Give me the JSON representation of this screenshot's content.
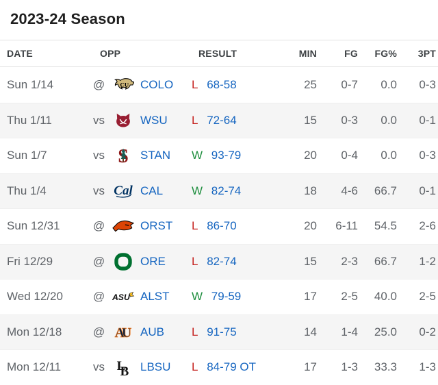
{
  "title": "2023-24 Season",
  "colors": {
    "link_blue": "#1565c0",
    "loss_red": "#c5221f",
    "win_green": "#1e8e3e",
    "row_alt_bg": "#f5f5f5",
    "text_gray": "#5f6368",
    "header_text": "#3c4043",
    "title_text": "#1f1f1f",
    "divider": "#e2e2e2"
  },
  "table": {
    "columns": [
      "DATE",
      "OPP",
      "RESULT",
      "MIN",
      "FG",
      "FG%",
      "3PT"
    ],
    "games": [
      {
        "date": "Sun 1/14",
        "site": "@",
        "team": "COLO",
        "logo": {
          "key": "colo",
          "name": "colorado-buffaloes-logo",
          "colors": [
            "#CFB87C",
            "#000000"
          ]
        },
        "result": {
          "letter": "L",
          "score": "68-58"
        },
        "stats": {
          "min": "25",
          "fg": "0-7",
          "fg_pct": "0.0",
          "three_pt": "0-3"
        }
      },
      {
        "date": "Thu 1/11",
        "site": "vs",
        "team": "WSU",
        "logo": {
          "key": "wsu",
          "name": "washington-state-cougars-logo",
          "colors": [
            "#981E32",
            "#ffffff"
          ]
        },
        "result": {
          "letter": "L",
          "score": "72-64"
        },
        "stats": {
          "min": "15",
          "fg": "0-3",
          "fg_pct": "0.0",
          "three_pt": "0-1"
        }
      },
      {
        "date": "Sun 1/7",
        "site": "vs",
        "team": "STAN",
        "logo": {
          "key": "stan",
          "name": "stanford-cardinal-logo",
          "colors": [
            "#8C1515",
            "#175E54"
          ]
        },
        "result": {
          "letter": "W",
          "score": "93-79"
        },
        "stats": {
          "min": "20",
          "fg": "0-4",
          "fg_pct": "0.0",
          "three_pt": "0-3"
        }
      },
      {
        "date": "Thu 1/4",
        "site": "vs",
        "team": "CAL",
        "logo": {
          "key": "cal",
          "name": "california-golden-bears-logo",
          "colors": [
            "#003262"
          ]
        },
        "result": {
          "letter": "W",
          "score": "82-74"
        },
        "stats": {
          "min": "18",
          "fg": "4-6",
          "fg_pct": "66.7",
          "three_pt": "0-1"
        }
      },
      {
        "date": "Sun 12/31",
        "site": "@",
        "team": "ORST",
        "logo": {
          "key": "orst",
          "name": "oregon-state-beavers-logo",
          "colors": [
            "#DC4405",
            "#000000"
          ]
        },
        "result": {
          "letter": "L",
          "score": "86-70"
        },
        "stats": {
          "min": "20",
          "fg": "6-11",
          "fg_pct": "54.5",
          "three_pt": "2-6"
        }
      },
      {
        "date": "Fri 12/29",
        "site": "@",
        "team": "ORE",
        "logo": {
          "key": "ore",
          "name": "oregon-ducks-logo",
          "colors": [
            "#007030"
          ]
        },
        "result": {
          "letter": "L",
          "score": "82-74"
        },
        "stats": {
          "min": "15",
          "fg": "2-3",
          "fg_pct": "66.7",
          "three_pt": "1-2"
        }
      },
      {
        "date": "Wed 12/20",
        "site": "@",
        "team": "ALST",
        "logo": {
          "key": "alst",
          "name": "alabama-state-hornets-logo",
          "colors": [
            "#101010",
            "#FFC423"
          ]
        },
        "result": {
          "letter": "W",
          "score": "79-59"
        },
        "stats": {
          "min": "17",
          "fg": "2-5",
          "fg_pct": "40.0",
          "three_pt": "2-5"
        }
      },
      {
        "date": "Mon 12/18",
        "site": "@",
        "team": "AUB",
        "logo": {
          "key": "aub",
          "name": "auburn-tigers-logo",
          "colors": [
            "#0C2340",
            "#E87722"
          ]
        },
        "result": {
          "letter": "L",
          "score": "91-75"
        },
        "stats": {
          "min": "14",
          "fg": "1-4",
          "fg_pct": "25.0",
          "three_pt": "0-2"
        }
      },
      {
        "date": "Mon 12/11",
        "site": "vs",
        "team": "LBSU",
        "logo": {
          "key": "lbsu",
          "name": "long-beach-state-logo",
          "colors": [
            "#111111"
          ]
        },
        "result": {
          "letter": "L",
          "score": "84-79 OT"
        },
        "stats": {
          "min": "17",
          "fg": "1-3",
          "fg_pct": "33.3",
          "three_pt": "1-3"
        }
      }
    ]
  }
}
